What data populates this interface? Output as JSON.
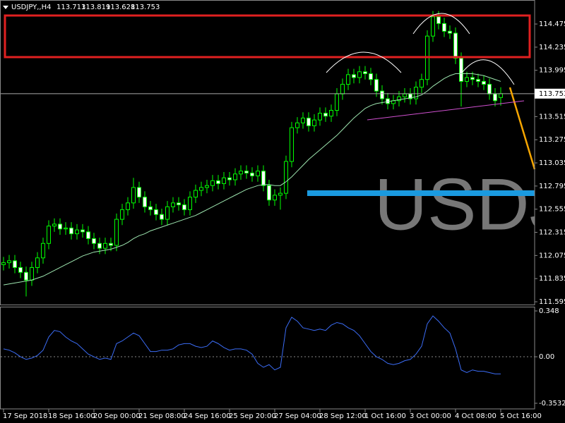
{
  "chart_data": {
    "type": "candlestick",
    "symbol": "USDJPY,,H4",
    "watermark": "USDJPY",
    "categories": [
      "17 Sep 2018",
      null,
      null,
      null,
      null,
      null,
      null,
      null,
      "18 Sep 16:00",
      null,
      null,
      null,
      null,
      null,
      null,
      null,
      "20 Sep 00:00",
      null,
      null,
      null,
      null,
      null,
      null,
      null,
      "21 Sep 08:00",
      null,
      null,
      null,
      null,
      null,
      null,
      null,
      "24 Sep 16:00",
      null,
      null,
      null,
      null,
      null,
      null,
      null,
      "25 Sep 20:00",
      null,
      null,
      null,
      null,
      null,
      null,
      null,
      "27 Sep 04:00",
      null,
      null,
      null,
      null,
      null,
      null,
      null,
      "28 Sep 12:00",
      null,
      null,
      null,
      null,
      null,
      null,
      null,
      "1 Oct 16:00",
      null,
      null,
      null,
      null,
      null,
      null,
      null,
      "3 Oct 00:00",
      null,
      null,
      null,
      null,
      null,
      null,
      null,
      "4 Oct 08:00",
      null,
      null,
      null,
      null,
      null,
      null,
      null,
      "5 Oct 16:00"
    ],
    "open": [
      111.98,
      112.0,
      112.02,
      111.95,
      111.9,
      111.82,
      111.95,
      112.05,
      112.2,
      112.38,
      112.4,
      112.35,
      112.36,
      112.3,
      112.34,
      112.32,
      112.25,
      112.2,
      112.15,
      112.2,
      112.18,
      112.45,
      112.55,
      112.62,
      112.78,
      112.68,
      112.58,
      112.55,
      112.5,
      112.45,
      112.58,
      112.62,
      112.6,
      112.55,
      112.68,
      112.75,
      112.78,
      112.8,
      112.85,
      112.82,
      112.88,
      112.86,
      112.92,
      112.95,
      112.93,
      112.9,
      112.95,
      112.8,
      112.65,
      112.7,
      112.72,
      113.05,
      113.4,
      113.45,
      113.5,
      113.42,
      113.48,
      113.55,
      113.52,
      113.58,
      113.75,
      113.85,
      113.95,
      113.92,
      113.98,
      113.96,
      113.9,
      113.78,
      113.7,
      113.65,
      113.68,
      113.72,
      113.75,
      113.7,
      113.82,
      113.9,
      114.35,
      114.55,
      114.48,
      114.4,
      114.38,
      114.12,
      113.88,
      113.92,
      113.9,
      113.88,
      113.85,
      113.75,
      113.713
    ],
    "high": [
      112.06,
      112.08,
      112.08,
      112.01,
      111.96,
      112.01,
      112.11,
      112.26,
      112.44,
      112.46,
      112.46,
      112.42,
      112.42,
      112.4,
      112.4,
      112.38,
      112.31,
      112.26,
      112.26,
      112.26,
      112.51,
      112.61,
      112.68,
      112.88,
      112.84,
      112.74,
      112.64,
      112.61,
      112.56,
      112.64,
      112.68,
      112.68,
      112.66,
      112.74,
      112.81,
      112.84,
      112.86,
      112.91,
      112.91,
      112.94,
      112.94,
      112.98,
      113.01,
      113.01,
      112.99,
      113.01,
      113.01,
      112.86,
      112.76,
      112.78,
      113.11,
      113.46,
      113.51,
      113.56,
      113.56,
      113.54,
      113.61,
      113.61,
      113.64,
      113.81,
      113.91,
      114.01,
      114.01,
      114.04,
      114.04,
      114.02,
      113.96,
      113.84,
      113.76,
      113.74,
      113.78,
      113.81,
      113.81,
      113.88,
      113.96,
      114.41,
      114.61,
      114.61,
      114.54,
      114.46,
      114.44,
      114.18,
      113.98,
      113.98,
      113.96,
      113.94,
      113.91,
      113.81,
      113.819
    ],
    "low": [
      111.92,
      111.94,
      111.89,
      111.84,
      111.65,
      111.76,
      111.89,
      111.99,
      112.14,
      112.32,
      112.29,
      112.29,
      112.24,
      112.24,
      112.26,
      112.19,
      112.14,
      112.09,
      112.09,
      112.12,
      112.12,
      112.39,
      112.49,
      112.56,
      112.62,
      112.52,
      112.49,
      112.44,
      112.39,
      112.39,
      112.52,
      112.54,
      112.49,
      112.49,
      112.62,
      112.69,
      112.72,
      112.74,
      112.76,
      112.76,
      112.8,
      112.8,
      112.86,
      112.87,
      112.84,
      112.84,
      112.74,
      112.59,
      112.59,
      112.55,
      112.66,
      112.99,
      113.34,
      113.39,
      113.36,
      113.36,
      113.42,
      113.46,
      113.46,
      113.52,
      113.69,
      113.79,
      113.86,
      113.86,
      113.9,
      113.84,
      113.72,
      113.64,
      113.59,
      113.59,
      113.62,
      113.66,
      113.64,
      113.64,
      113.76,
      113.84,
      114.29,
      114.42,
      114.34,
      114.32,
      114.06,
      113.62,
      113.82,
      113.84,
      113.82,
      113.79,
      113.69,
      113.62,
      113.628
    ],
    "close": [
      112.0,
      112.02,
      111.95,
      111.9,
      111.82,
      111.95,
      112.05,
      112.2,
      112.38,
      112.4,
      112.35,
      112.36,
      112.3,
      112.34,
      112.32,
      112.25,
      112.2,
      112.15,
      112.2,
      112.18,
      112.45,
      112.55,
      112.62,
      112.78,
      112.68,
      112.58,
      112.55,
      112.5,
      112.45,
      112.58,
      112.62,
      112.6,
      112.55,
      112.68,
      112.75,
      112.78,
      112.8,
      112.85,
      112.82,
      112.88,
      112.86,
      112.92,
      112.95,
      112.93,
      112.9,
      112.95,
      112.8,
      112.65,
      112.7,
      112.72,
      113.05,
      113.4,
      113.45,
      113.5,
      113.42,
      113.48,
      113.55,
      113.52,
      113.58,
      113.75,
      113.85,
      113.95,
      113.92,
      113.98,
      113.96,
      113.9,
      113.78,
      113.7,
      113.65,
      113.68,
      113.72,
      113.75,
      113.7,
      113.82,
      113.9,
      114.35,
      114.55,
      114.48,
      114.4,
      114.38,
      114.12,
      113.88,
      113.92,
      113.9,
      113.88,
      113.85,
      113.75,
      113.68,
      113.753
    ],
    "colors": {
      "up": "#000000",
      "down": "#ffffff",
      "wick": "#00ff00"
    },
    "ylim": [
      111.566,
      114.724
    ],
    "yticks": [
      114.475,
      114.235,
      113.995,
      113.515,
      113.275,
      113.035,
      112.795,
      112.555,
      112.315,
      112.075,
      111.835,
      111.595
    ],
    "ma": {
      "color": "#9ee6b0",
      "values": [
        111.77,
        111.78,
        111.79,
        111.8,
        111.81,
        111.82,
        111.84,
        111.86,
        111.89,
        111.92,
        111.95,
        111.98,
        112.01,
        112.04,
        112.07,
        112.09,
        112.11,
        112.12,
        112.13,
        112.14,
        112.16,
        112.18,
        112.21,
        112.25,
        112.28,
        112.3,
        112.33,
        112.35,
        112.37,
        112.39,
        112.41,
        112.43,
        112.45,
        112.47,
        112.49,
        112.52,
        112.55,
        112.58,
        112.61,
        112.64,
        112.67,
        112.7,
        112.73,
        112.76,
        112.78,
        112.8,
        112.81,
        112.81,
        112.8,
        112.8,
        112.84,
        112.89,
        112.95,
        113.01,
        113.07,
        113.12,
        113.17,
        113.22,
        113.27,
        113.32,
        113.38,
        113.44,
        113.5,
        113.55,
        113.6,
        113.63,
        113.65,
        113.66,
        113.67,
        113.68,
        113.69,
        113.7,
        113.71,
        113.72,
        113.74,
        113.78,
        113.83,
        113.87,
        113.91,
        113.94,
        113.96,
        113.96,
        113.96,
        113.96,
        113.95,
        113.94,
        113.92,
        113.9,
        113.88
      ]
    },
    "oscillator": {
      "color": "#3b6cf5",
      "values": [
        0.06,
        0.05,
        0.03,
        0.0,
        -0.02,
        -0.01,
        0.01,
        0.05,
        0.15,
        0.2,
        0.19,
        0.15,
        0.12,
        0.1,
        0.06,
        0.02,
        0.0,
        -0.02,
        -0.01,
        -0.02,
        0.1,
        0.12,
        0.15,
        0.18,
        0.16,
        0.1,
        0.04,
        0.04,
        0.05,
        0.05,
        0.06,
        0.09,
        0.1,
        0.1,
        0.08,
        0.07,
        0.08,
        0.12,
        0.1,
        0.07,
        0.05,
        0.06,
        0.06,
        0.05,
        0.02,
        -0.05,
        -0.08,
        -0.06,
        -0.1,
        -0.08,
        0.22,
        0.3,
        0.27,
        0.22,
        0.21,
        0.2,
        0.21,
        0.2,
        0.24,
        0.26,
        0.25,
        0.22,
        0.2,
        0.16,
        0.1,
        0.04,
        0.0,
        -0.02,
        -0.05,
        -0.06,
        -0.05,
        -0.03,
        -0.02,
        0.02,
        0.08,
        0.25,
        0.31,
        0.27,
        0.22,
        0.18,
        0.06,
        -0.1,
        -0.12,
        -0.1,
        -0.11,
        -0.11,
        -0.12,
        -0.13,
        -0.13
      ],
      "ylim": [
        -0.396,
        0.375
      ],
      "yticks": [
        0.348,
        {
          "value": 0,
          "label": "0.00"
        },
        -0.3532
      ]
    }
  }
}
